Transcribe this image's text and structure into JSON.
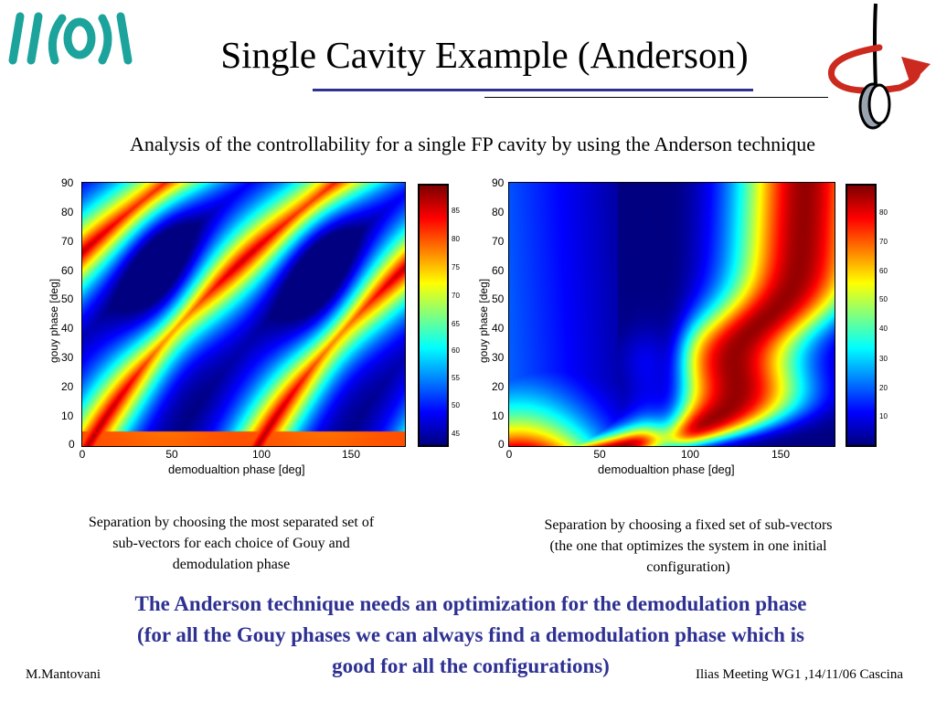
{
  "header": {
    "title": "Single Cavity Example (Anderson)",
    "subtitle": "Analysis of the controllability for a single FP cavity by using the Anderson technique"
  },
  "logo": {
    "icon": "virgo-logo-icon",
    "color": "#1ba39c"
  },
  "mirror_icon": {
    "icon": "rotating-mirror-icon",
    "arrow_color": "#cc2a1f"
  },
  "chart_data": [
    {
      "type": "heatmap",
      "title": "",
      "xlabel": "demodualtion phase [deg]",
      "ylabel": "gouy phase [deg]",
      "xlim": [
        0,
        180
      ],
      "ylim": [
        0,
        90
      ],
      "x_ticks": [
        "0",
        "50",
        "100",
        "150"
      ],
      "y_ticks": [
        "0",
        "10",
        "20",
        "30",
        "40",
        "50",
        "60",
        "70",
        "80",
        "90"
      ],
      "colorbar_ticks": [
        "85",
        "80",
        "75",
        "70",
        "65",
        "60",
        "55",
        "50",
        "45"
      ],
      "colorbar_range": [
        42,
        88
      ],
      "colormap": "jet"
    },
    {
      "type": "heatmap",
      "title": "",
      "xlabel": "demodualtion phase [deg]",
      "ylabel": "gouy phase [deg]",
      "xlim": [
        0,
        180
      ],
      "ylim": [
        0,
        90
      ],
      "x_ticks": [
        "0",
        "50",
        "100",
        "150"
      ],
      "y_ticks": [
        "0",
        "10",
        "20",
        "30",
        "40",
        "50",
        "60",
        "70",
        "80",
        "90"
      ],
      "colorbar_ticks": [
        "80",
        "70",
        "60",
        "50",
        "40",
        "30",
        "20",
        "10"
      ],
      "colorbar_range": [
        0,
        88
      ],
      "colormap": "jet"
    }
  ],
  "captions": {
    "left": [
      "Separation by choosing the most separated set of",
      "sub-vectors for each choice of Gouy and",
      "demodulation phase"
    ],
    "right": [
      "Separation by choosing a fixed set of  sub-vectors",
      "(the one that optimizes the system in one initial",
      "configuration)"
    ]
  },
  "conclusion": [
    "The Anderson technique needs an optimization for the demodulation phase",
    "(for all the Gouy phases we can always find a demodulation phase which is",
    "good for all the configurations)"
  ],
  "footer": {
    "author": "M.Mantovani",
    "meeting": "Ilias Meeting WG1 ,14/11/06 Cascina"
  }
}
